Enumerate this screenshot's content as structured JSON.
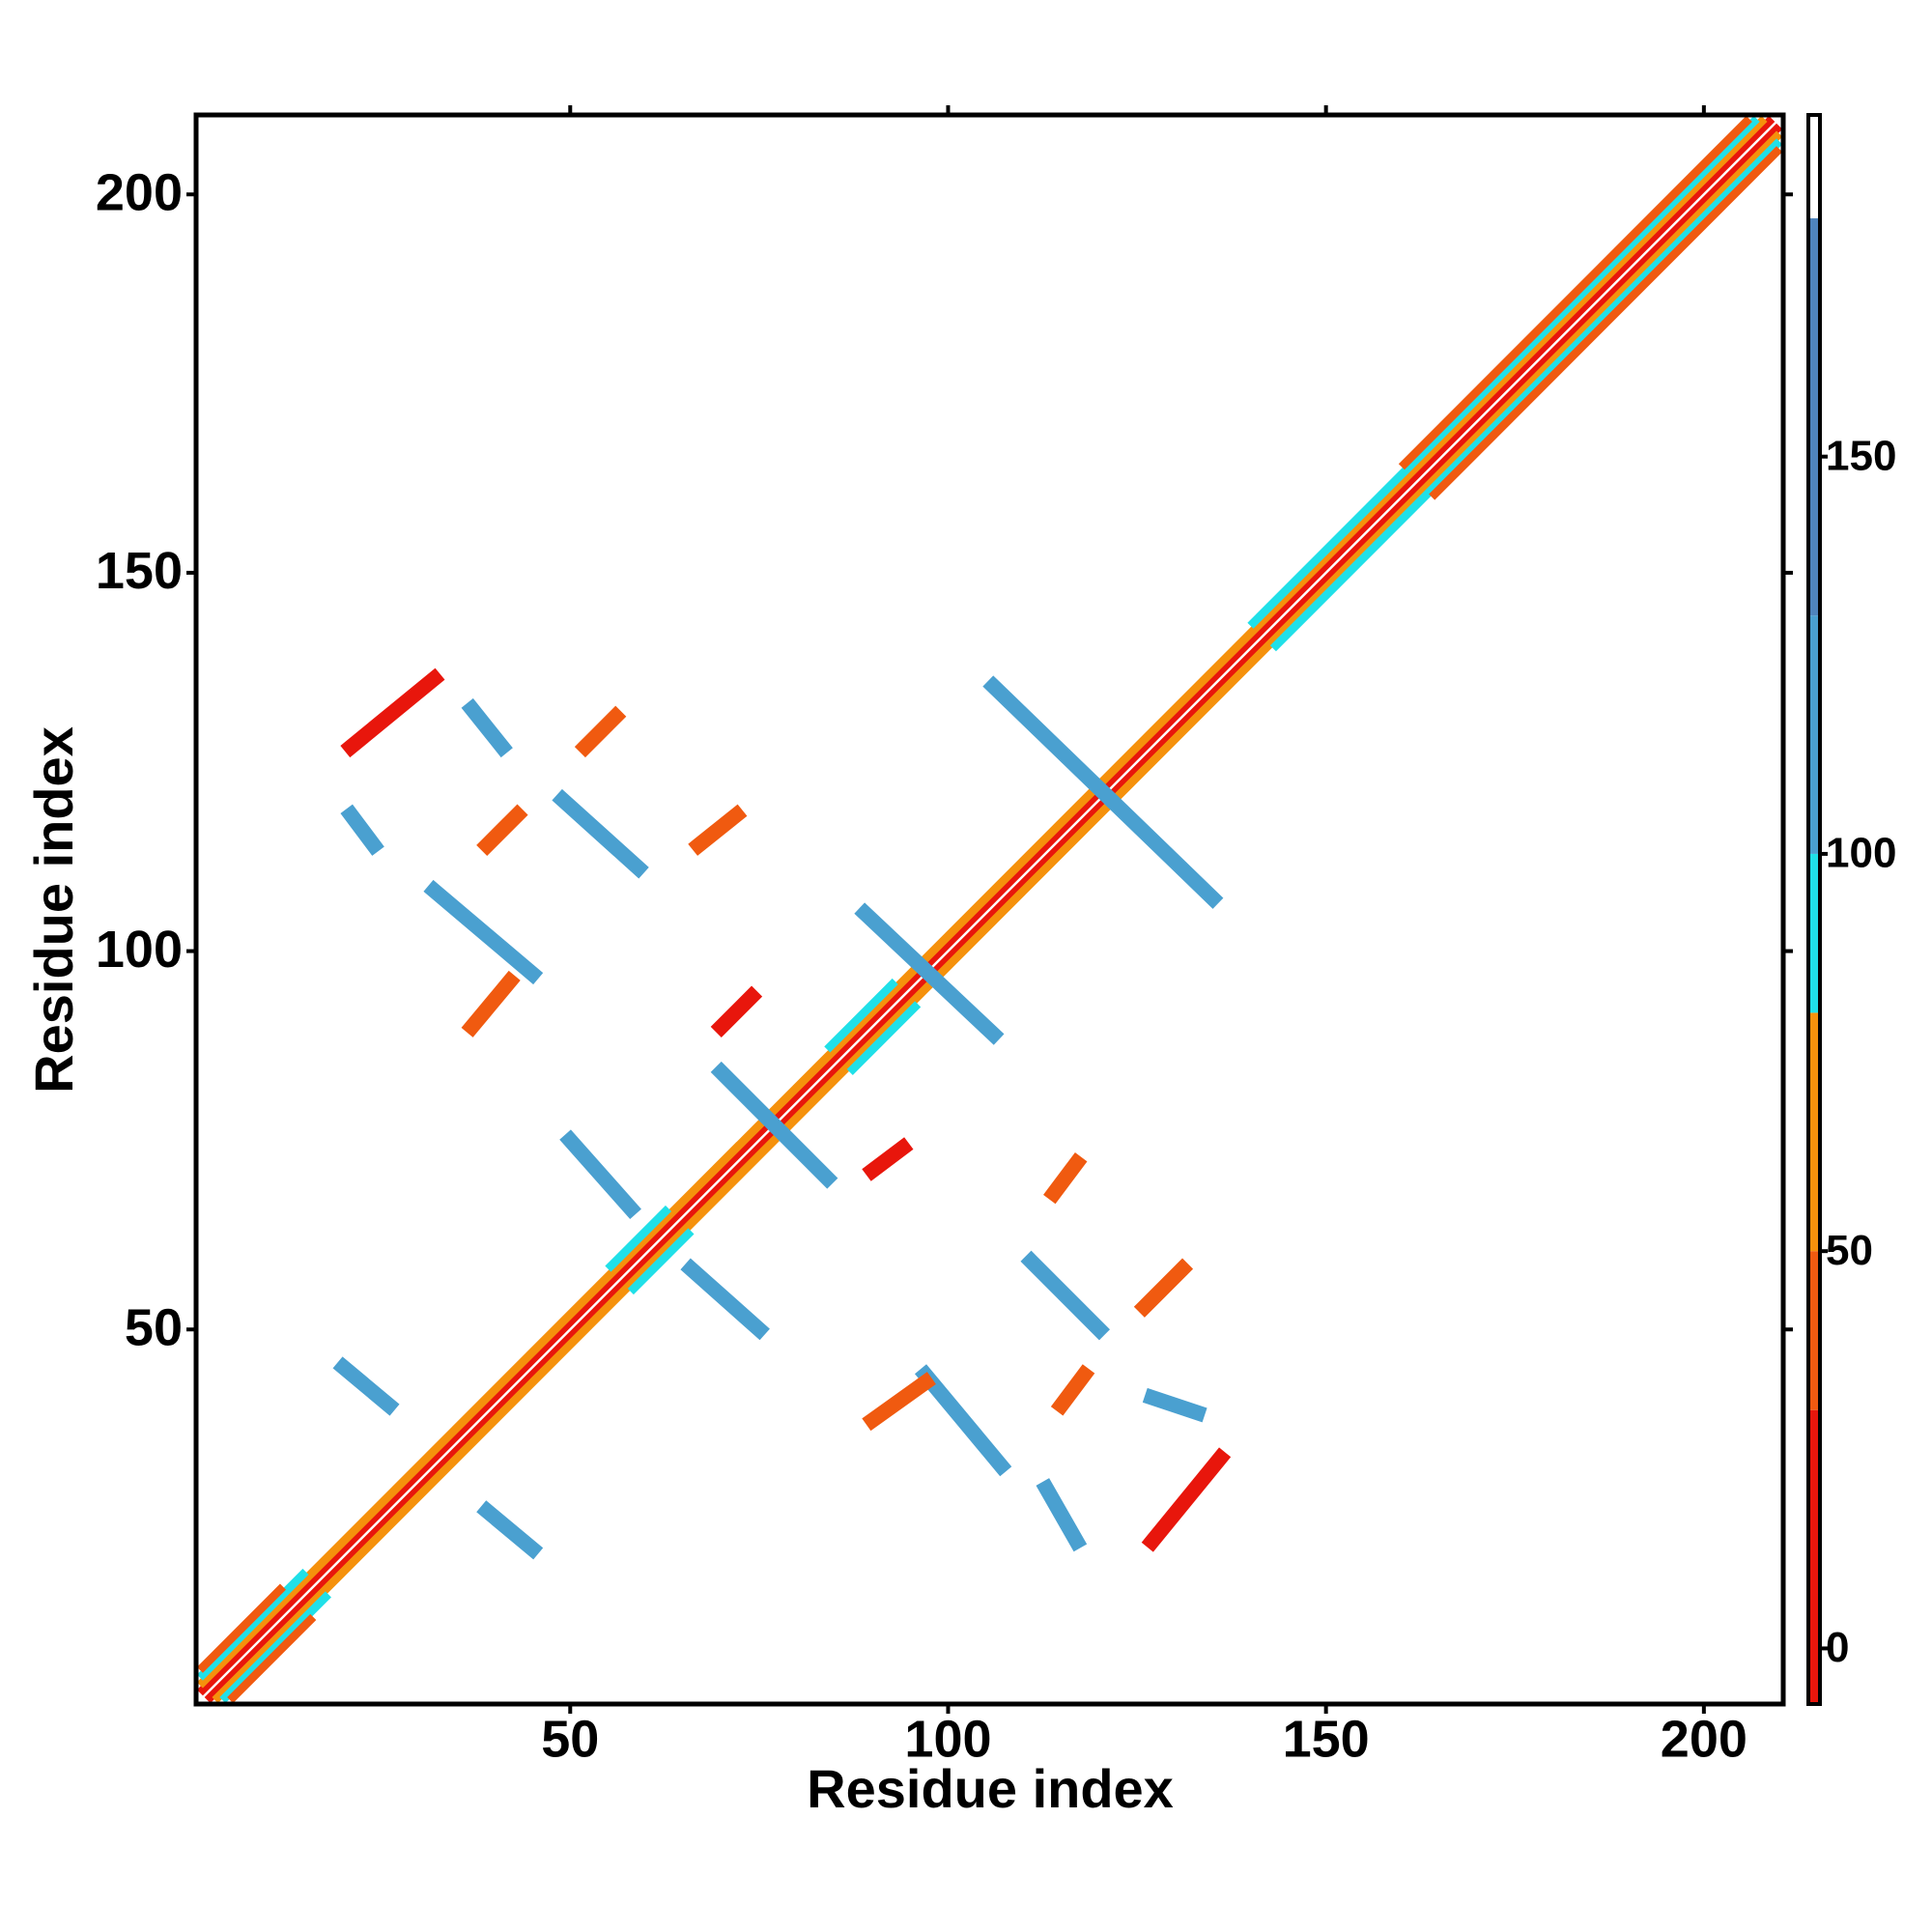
{
  "chart_data": {
    "type": "heatmap",
    "xlabel": "Residue index",
    "ylabel": "Residue index",
    "xlim": [
      0.5,
      210.5
    ],
    "ylim": [
      0.5,
      210.5
    ],
    "xticks": [
      50,
      100,
      150,
      200
    ],
    "yticks": [
      50,
      100,
      150,
      200
    ],
    "colorbar": {
      "lim": [
        -7,
        193
      ],
      "ticks": [
        0,
        50,
        100,
        150
      ],
      "bounds": [
        -7,
        30,
        50,
        80,
        100,
        130,
        180,
        193
      ],
      "colors": [
        "#e8160c",
        "#f05a10",
        "#f5910c",
        "#20e0e8",
        "#4aa0d0",
        "#4f84bc",
        "#ffffff"
      ]
    },
    "diagonal_bands": [
      {
        "offset": 1,
        "from": 1,
        "to": 210,
        "value": 15
      },
      {
        "offset": 2,
        "from": 1,
        "to": 210,
        "value": 60
      },
      {
        "offset": 3,
        "from": 1,
        "to": 18,
        "value": 90
      },
      {
        "offset": 3,
        "from": 55,
        "to": 66,
        "value": 90
      },
      {
        "offset": 3,
        "from": 84,
        "to": 96,
        "value": 90
      },
      {
        "offset": 3,
        "from": 140,
        "to": 210,
        "value": 90
      },
      {
        "offset": 4,
        "from": 1,
        "to": 16,
        "value": 40
      },
      {
        "offset": 4,
        "from": 160,
        "to": 210,
        "value": 40
      }
    ],
    "streaks": [
      {
        "x": [
          21,
          32
        ],
        "y": [
          127,
          136
        ],
        "value": 20
      },
      {
        "x": [
          49,
          59
        ],
        "y": [
          120,
          111
        ],
        "value": 125
      },
      {
        "x": [
          32,
          45
        ],
        "y": [
          108,
          97
        ],
        "value": 125
      },
      {
        "x": [
          37,
          42
        ],
        "y": [
          90,
          96
        ],
        "value": 45
      },
      {
        "x": [
          20,
          26
        ],
        "y": [
          45,
          40
        ],
        "value": 125
      },
      {
        "x": [
          39,
          45
        ],
        "y": [
          26,
          21
        ],
        "value": 125
      },
      {
        "x": [
          50,
          58
        ],
        "y": [
          75,
          66
        ],
        "value": 125
      },
      {
        "x": [
          66,
          75
        ],
        "y": [
          58,
          50
        ],
        "value": 125
      },
      {
        "x": [
          70,
          84
        ],
        "y": [
          84,
          70
        ],
        "value": 125
      },
      {
        "x": [
          89,
          106
        ],
        "y": [
          105,
          89
        ],
        "value": 125
      },
      {
        "x": [
          106,
          135
        ],
        "y": [
          135,
          107
        ],
        "value": 125
      },
      {
        "x": [
          97,
          107
        ],
        "y": [
          44,
          32
        ],
        "value": 125
      },
      {
        "x": [
          111,
          120
        ],
        "y": [
          59,
          50
        ],
        "value": 125
      },
      {
        "x": [
          127,
          136
        ],
        "y": [
          22,
          33
        ],
        "value": 20
      },
      {
        "x": [
          90,
          97
        ],
        "y": [
          38,
          43
        ],
        "value": 45
      },
      {
        "x": [
          115,
          118
        ],
        "y": [
          40,
          44
        ],
        "value": 45
      },
      {
        "x": [
          70,
          74
        ],
        "y": [
          90,
          94
        ],
        "value": 20
      },
      {
        "x": [
          39,
          43
        ],
        "y": [
          114,
          118
        ],
        "value": 45
      },
      {
        "x": [
          90,
          94
        ],
        "y": [
          71,
          74
        ],
        "value": 20
      },
      {
        "x": [
          114,
          117
        ],
        "y": [
          68,
          72
        ],
        "value": 45
      },
      {
        "x": [
          126,
          131
        ],
        "y": [
          53,
          58
        ],
        "value": 45
      },
      {
        "x": [
          37,
          41
        ],
        "y": [
          132,
          127
        ],
        "value": 125
      },
      {
        "x": [
          21,
          24
        ],
        "y": [
          118,
          114
        ],
        "value": 125
      },
      {
        "x": [
          52,
          56
        ],
        "y": [
          127,
          131
        ],
        "value": 45
      },
      {
        "x": [
          67,
          72
        ],
        "y": [
          114,
          118
        ],
        "value": 45
      },
      {
        "x": [
          127,
          133
        ],
        "y": [
          41,
          39
        ],
        "value": 125
      },
      {
        "x": [
          113,
          117
        ],
        "y": [
          29,
          22
        ],
        "value": 125
      }
    ]
  }
}
